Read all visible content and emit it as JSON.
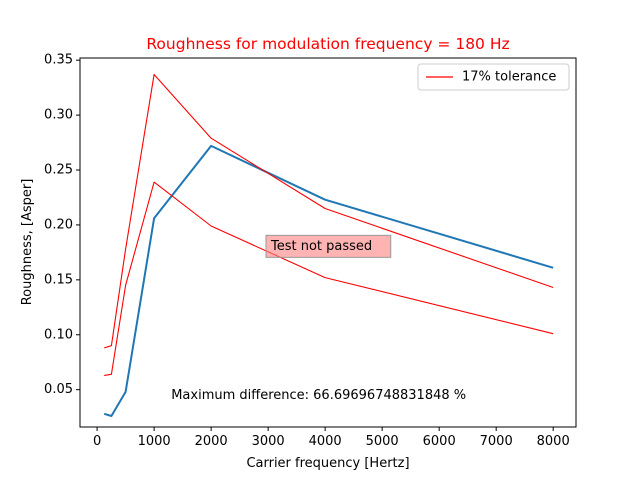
{
  "chart_data": {
    "type": "line",
    "title": "Roughness for modulation frequency = 180 Hz",
    "xlabel": "Carrier frequency [Hertz]",
    "ylabel": "Roughness, [Asper]",
    "xlim": [
      -300,
      8400
    ],
    "ylim": [
      0.016,
      0.352
    ],
    "xticks": [
      0,
      1000,
      2000,
      3000,
      4000,
      5000,
      6000,
      7000,
      8000
    ],
    "yticks": [
      0.05,
      0.1,
      0.15,
      0.2,
      0.25,
      0.3,
      0.35
    ],
    "ytick_labels": [
      "0.05",
      "0.10",
      "0.15",
      "0.20",
      "0.25",
      "0.30",
      "0.35"
    ],
    "series": [
      {
        "color": "#1f77b4",
        "x": [
          125,
          250,
          500,
          1000,
          2000,
          4000,
          8000
        ],
        "values": [
          0.028,
          0.026,
          0.048,
          0.206,
          0.272,
          0.223,
          0.161
        ]
      },
      {
        "name": "17% tolerance",
        "color": "#ff0000",
        "x": [
          125,
          250,
          500,
          1000,
          2000,
          4000,
          8000
        ],
        "values": [
          0.088,
          0.09,
          0.178,
          0.337,
          0.279,
          0.215,
          0.143
        ]
      },
      {
        "color": "#ff0000",
        "x": [
          125,
          250,
          500,
          1000,
          2000,
          4000,
          8000
        ],
        "values": [
          0.063,
          0.064,
          0.145,
          0.239,
          0.199,
          0.152,
          0.101
        ]
      }
    ],
    "legend": {
      "position": "top-right",
      "entries": [
        "17% tolerance"
      ]
    },
    "annotations": [
      {
        "text": "Test not passed",
        "x": 3050,
        "y": 0.1805,
        "style": "box",
        "box_color": "#ff8080"
      },
      {
        "text": "Maximum difference: 66.69696748831848 %",
        "x": 1300,
        "y": 0.0445,
        "style": "plain"
      }
    ],
    "title_color": "#ff0000",
    "grid": false
  }
}
